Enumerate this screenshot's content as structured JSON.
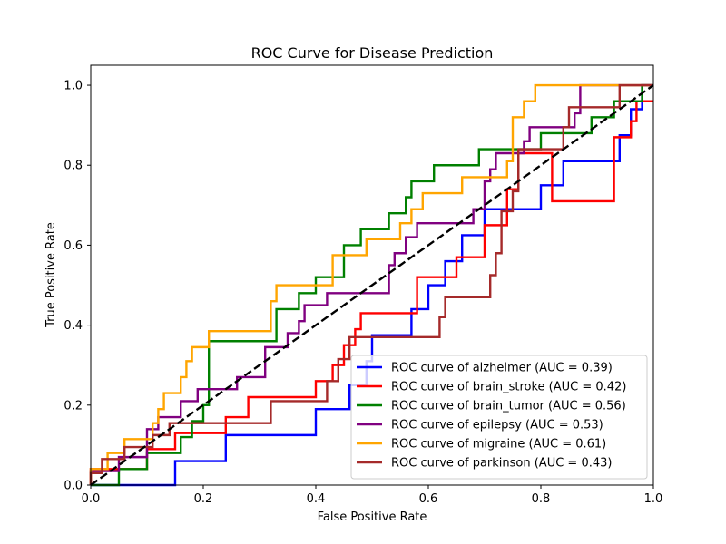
{
  "chart_data": {
    "type": "line",
    "title": "ROC Curve for Disease Prediction",
    "xlabel": "False Positive Rate",
    "ylabel": "True Positive Rate",
    "xlim": [
      0,
      1
    ],
    "ylim": [
      0,
      1.05
    ],
    "xticks": [
      "0.0",
      "0.2",
      "0.4",
      "0.6",
      "0.8",
      "1.0"
    ],
    "yticks": [
      "0.0",
      "0.2",
      "0.4",
      "0.6",
      "0.8",
      "1.0"
    ],
    "legend_position": "lower-right",
    "grid": false,
    "series": [
      {
        "name": "ROC curve of alzheimer (AUC = 0.39)",
        "color": "#0000ff",
        "step": true,
        "points": [
          [
            0,
            0
          ],
          [
            0.15,
            0
          ],
          [
            0.15,
            0.06
          ],
          [
            0.24,
            0.06
          ],
          [
            0.24,
            0.125
          ],
          [
            0.4,
            0.125
          ],
          [
            0.4,
            0.19
          ],
          [
            0.46,
            0.19
          ],
          [
            0.46,
            0.25
          ],
          [
            0.49,
            0.25
          ],
          [
            0.49,
            0.31
          ],
          [
            0.5,
            0.31
          ],
          [
            0.5,
            0.375
          ],
          [
            0.57,
            0.375
          ],
          [
            0.57,
            0.44
          ],
          [
            0.6,
            0.44
          ],
          [
            0.6,
            0.5
          ],
          [
            0.63,
            0.5
          ],
          [
            0.63,
            0.56
          ],
          [
            0.66,
            0.56
          ],
          [
            0.66,
            0.625
          ],
          [
            0.7,
            0.625
          ],
          [
            0.7,
            0.69
          ],
          [
            0.8,
            0.69
          ],
          [
            0.8,
            0.75
          ],
          [
            0.84,
            0.75
          ],
          [
            0.84,
            0.81
          ],
          [
            0.94,
            0.81
          ],
          [
            0.94,
            0.875
          ],
          [
            0.96,
            0.875
          ],
          [
            0.96,
            0.94
          ],
          [
            0.98,
            0.94
          ],
          [
            0.98,
            1.0
          ],
          [
            1.0,
            1.0
          ]
        ]
      },
      {
        "name": "ROC curve of brain_stroke (AUC = 0.42)",
        "color": "#ff0000",
        "step": true,
        "points": [
          [
            0,
            0
          ],
          [
            0,
            0.04
          ],
          [
            0.1,
            0.04
          ],
          [
            0.1,
            0.09
          ],
          [
            0.15,
            0.09
          ],
          [
            0.15,
            0.13
          ],
          [
            0.24,
            0.13
          ],
          [
            0.24,
            0.17
          ],
          [
            0.28,
            0.17
          ],
          [
            0.28,
            0.22
          ],
          [
            0.4,
            0.22
          ],
          [
            0.4,
            0.26
          ],
          [
            0.43,
            0.26
          ],
          [
            0.43,
            0.3
          ],
          [
            0.45,
            0.3
          ],
          [
            0.45,
            0.35
          ],
          [
            0.47,
            0.35
          ],
          [
            0.47,
            0.39
          ],
          [
            0.48,
            0.39
          ],
          [
            0.48,
            0.43
          ],
          [
            0.58,
            0.43
          ],
          [
            0.58,
            0.48
          ],
          [
            0.58,
            0.52
          ],
          [
            0.65,
            0.52
          ],
          [
            0.65,
            0.57
          ],
          [
            0.7,
            0.57
          ],
          [
            0.7,
            0.65
          ],
          [
            0.74,
            0.65
          ],
          [
            0.74,
            0.74
          ],
          [
            0.76,
            0.74
          ],
          [
            0.76,
            0.83
          ],
          [
            0.82,
            0.83
          ],
          [
            0.82,
            0.71
          ],
          [
            0.93,
            0.71
          ],
          [
            0.93,
            0.87
          ],
          [
            0.96,
            0.87
          ],
          [
            0.96,
            0.91
          ],
          [
            0.97,
            0.91
          ],
          [
            0.97,
            0.96
          ],
          [
            1.0,
            0.96
          ]
        ]
      },
      {
        "name": "ROC curve of brain_tumor (AUC = 0.56)",
        "color": "#008000",
        "step": true,
        "points": [
          [
            0,
            0
          ],
          [
            0.05,
            0
          ],
          [
            0.05,
            0.04
          ],
          [
            0.1,
            0.04
          ],
          [
            0.1,
            0.08
          ],
          [
            0.16,
            0.08
          ],
          [
            0.16,
            0.12
          ],
          [
            0.18,
            0.12
          ],
          [
            0.18,
            0.16
          ],
          [
            0.2,
            0.16
          ],
          [
            0.2,
            0.2
          ],
          [
            0.21,
            0.2
          ],
          [
            0.21,
            0.36
          ],
          [
            0.33,
            0.36
          ],
          [
            0.33,
            0.44
          ],
          [
            0.37,
            0.44
          ],
          [
            0.37,
            0.48
          ],
          [
            0.4,
            0.48
          ],
          [
            0.4,
            0.52
          ],
          [
            0.45,
            0.52
          ],
          [
            0.45,
            0.6
          ],
          [
            0.48,
            0.6
          ],
          [
            0.48,
            0.64
          ],
          [
            0.53,
            0.64
          ],
          [
            0.53,
            0.68
          ],
          [
            0.56,
            0.68
          ],
          [
            0.56,
            0.72
          ],
          [
            0.57,
            0.72
          ],
          [
            0.57,
            0.76
          ],
          [
            0.61,
            0.76
          ],
          [
            0.61,
            0.8
          ],
          [
            0.69,
            0.8
          ],
          [
            0.69,
            0.84
          ],
          [
            0.8,
            0.84
          ],
          [
            0.8,
            0.88
          ],
          [
            0.89,
            0.88
          ],
          [
            0.89,
            0.92
          ],
          [
            0.93,
            0.92
          ],
          [
            0.93,
            0.96
          ],
          [
            0.98,
            0.96
          ],
          [
            0.98,
            1.0
          ],
          [
            1.0,
            1.0
          ]
        ]
      },
      {
        "name": "ROC curve of epilepsy (AUC = 0.53)",
        "color": "#800080",
        "step": true,
        "points": [
          [
            0,
            0
          ],
          [
            0,
            0.035
          ],
          [
            0.05,
            0.035
          ],
          [
            0.05,
            0.07
          ],
          [
            0.1,
            0.07
          ],
          [
            0.1,
            0.14
          ],
          [
            0.12,
            0.14
          ],
          [
            0.12,
            0.17
          ],
          [
            0.16,
            0.17
          ],
          [
            0.16,
            0.21
          ],
          [
            0.19,
            0.21
          ],
          [
            0.19,
            0.24
          ],
          [
            0.26,
            0.24
          ],
          [
            0.26,
            0.27
          ],
          [
            0.31,
            0.27
          ],
          [
            0.31,
            0.345
          ],
          [
            0.35,
            0.345
          ],
          [
            0.35,
            0.38
          ],
          [
            0.37,
            0.38
          ],
          [
            0.37,
            0.41
          ],
          [
            0.38,
            0.41
          ],
          [
            0.38,
            0.45
          ],
          [
            0.42,
            0.45
          ],
          [
            0.42,
            0.48
          ],
          [
            0.53,
            0.48
          ],
          [
            0.53,
            0.55
          ],
          [
            0.54,
            0.55
          ],
          [
            0.54,
            0.58
          ],
          [
            0.56,
            0.58
          ],
          [
            0.56,
            0.62
          ],
          [
            0.58,
            0.62
          ],
          [
            0.58,
            0.655
          ],
          [
            0.68,
            0.655
          ],
          [
            0.68,
            0.69
          ],
          [
            0.7,
            0.69
          ],
          [
            0.7,
            0.76
          ],
          [
            0.71,
            0.76
          ],
          [
            0.71,
            0.79
          ],
          [
            0.72,
            0.79
          ],
          [
            0.72,
            0.83
          ],
          [
            0.77,
            0.83
          ],
          [
            0.77,
            0.86
          ],
          [
            0.78,
            0.86
          ],
          [
            0.78,
            0.895
          ],
          [
            0.86,
            0.895
          ],
          [
            0.86,
            0.93
          ],
          [
            0.87,
            0.93
          ],
          [
            0.87,
            1.0
          ],
          [
            1.0,
            1.0
          ]
        ]
      },
      {
        "name": "ROC curve of migraine (AUC = 0.61)",
        "color": "#ffa500",
        "step": true,
        "points": [
          [
            0,
            0
          ],
          [
            0,
            0.04
          ],
          [
            0.03,
            0.04
          ],
          [
            0.03,
            0.08
          ],
          [
            0.06,
            0.08
          ],
          [
            0.06,
            0.115
          ],
          [
            0.11,
            0.115
          ],
          [
            0.11,
            0.155
          ],
          [
            0.12,
            0.155
          ],
          [
            0.12,
            0.19
          ],
          [
            0.13,
            0.19
          ],
          [
            0.13,
            0.23
          ],
          [
            0.16,
            0.23
          ],
          [
            0.16,
            0.27
          ],
          [
            0.17,
            0.27
          ],
          [
            0.17,
            0.31
          ],
          [
            0.18,
            0.31
          ],
          [
            0.18,
            0.345
          ],
          [
            0.21,
            0.345
          ],
          [
            0.21,
            0.385
          ],
          [
            0.32,
            0.385
          ],
          [
            0.32,
            0.46
          ],
          [
            0.33,
            0.46
          ],
          [
            0.33,
            0.5
          ],
          [
            0.43,
            0.5
          ],
          [
            0.43,
            0.575
          ],
          [
            0.49,
            0.575
          ],
          [
            0.49,
            0.615
          ],
          [
            0.55,
            0.615
          ],
          [
            0.55,
            0.655
          ],
          [
            0.57,
            0.655
          ],
          [
            0.57,
            0.69
          ],
          [
            0.59,
            0.69
          ],
          [
            0.59,
            0.73
          ],
          [
            0.66,
            0.73
          ],
          [
            0.66,
            0.77
          ],
          [
            0.74,
            0.77
          ],
          [
            0.74,
            0.81
          ],
          [
            0.75,
            0.81
          ],
          [
            0.75,
            0.92
          ],
          [
            0.77,
            0.92
          ],
          [
            0.77,
            0.96
          ],
          [
            0.79,
            0.96
          ],
          [
            0.79,
            1.0
          ],
          [
            1.0,
            1.0
          ]
        ]
      },
      {
        "name": "ROC curve of parkinson (AUC = 0.43)",
        "color": "#a52a2a",
        "step": true,
        "points": [
          [
            0,
            0
          ],
          [
            0,
            0.03
          ],
          [
            0.02,
            0.03
          ],
          [
            0.02,
            0.065
          ],
          [
            0.06,
            0.065
          ],
          [
            0.06,
            0.095
          ],
          [
            0.11,
            0.095
          ],
          [
            0.11,
            0.125
          ],
          [
            0.14,
            0.125
          ],
          [
            0.14,
            0.155
          ],
          [
            0.32,
            0.155
          ],
          [
            0.32,
            0.21
          ],
          [
            0.42,
            0.21
          ],
          [
            0.42,
            0.26
          ],
          [
            0.44,
            0.26
          ],
          [
            0.44,
            0.315
          ],
          [
            0.46,
            0.315
          ],
          [
            0.46,
            0.37
          ],
          [
            0.62,
            0.37
          ],
          [
            0.62,
            0.42
          ],
          [
            0.63,
            0.42
          ],
          [
            0.63,
            0.47
          ],
          [
            0.71,
            0.47
          ],
          [
            0.71,
            0.525
          ],
          [
            0.72,
            0.525
          ],
          [
            0.72,
            0.58
          ],
          [
            0.73,
            0.58
          ],
          [
            0.73,
            0.685
          ],
          [
            0.75,
            0.685
          ],
          [
            0.75,
            0.735
          ],
          [
            0.76,
            0.735
          ],
          [
            0.76,
            0.84
          ],
          [
            0.84,
            0.84
          ],
          [
            0.84,
            0.895
          ],
          [
            0.85,
            0.895
          ],
          [
            0.85,
            0.945
          ],
          [
            0.94,
            0.945
          ],
          [
            0.94,
            1.0
          ],
          [
            1.0,
            1.0
          ]
        ]
      }
    ],
    "diagonal": {
      "points": [
        [
          0,
          0
        ],
        [
          1,
          1
        ]
      ],
      "color": "#000000",
      "dash": true
    }
  }
}
